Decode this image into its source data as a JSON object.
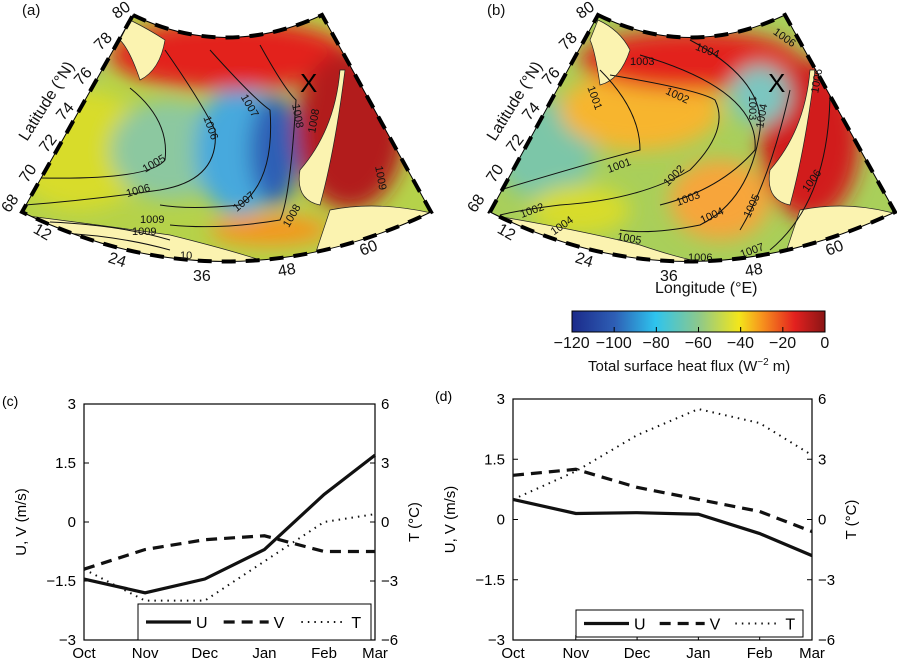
{
  "maps": [
    {
      "panel": "(a)",
      "lat_label": "Latitude (°N)",
      "lat_ticks": [
        "80",
        "78",
        "76",
        "74",
        "72",
        "70",
        "68"
      ],
      "lon_ticks": [
        "12",
        "24",
        "36",
        "48",
        "60"
      ],
      "contours": [
        "1005",
        "1006",
        "1007",
        "1008",
        "1006",
        "1007",
        "1008",
        "1009",
        "1009",
        "1008",
        "1009",
        "10"
      ],
      "marker": "X"
    },
    {
      "panel": "(b)",
      "lat_label": "Latitude (°N)",
      "lat_ticks": [
        "80",
        "78",
        "76",
        "74",
        "72",
        "70",
        "68"
      ],
      "lon_ticks": [
        "12",
        "24",
        "36",
        "48",
        "60"
      ],
      "lon_label": "Longitude (°E)",
      "contours": [
        "1006",
        "1004",
        "1003",
        "1002",
        "1001",
        "1001",
        "1002",
        "1003",
        "1004",
        "1005",
        "1006",
        "1002",
        "1004",
        "1005",
        "1006",
        "1004",
        "1003",
        "1006",
        "1007"
      ],
      "marker": "X"
    }
  ],
  "colorbar": {
    "ticks": [
      "−120",
      "−100",
      "−80",
      "−60",
      "−40",
      "−20",
      "0"
    ],
    "label": "Total surface heat flux (W",
    "label_sup": "−2",
    "label_end": " m)",
    "range": [
      -120,
      0
    ],
    "colors": [
      "#1b2a8a",
      "#2e5fb5",
      "#2ec4ee",
      "#8cc88c",
      "#f3e61b",
      "#f7941d",
      "#e3211f",
      "#8a1515"
    ]
  },
  "chart_data": [
    {
      "type": "line",
      "panel": "(c)",
      "categories": [
        "Oct",
        "Nov",
        "Dec",
        "Jan",
        "Feb",
        "Mar"
      ],
      "ylabel": "U, V (m/s)",
      "y2label": "T (°C)",
      "ylim": [
        -3,
        3
      ],
      "y2lim": [
        -6,
        6
      ],
      "yticks": [
        "3",
        "1.5",
        "0",
        "−1.5",
        "−3"
      ],
      "y2ticks": [
        "6",
        "3",
        "0",
        "−3",
        "−6"
      ],
      "series": [
        {
          "name": "U",
          "axis": "left",
          "style": "solid",
          "values": [
            -1.45,
            -1.8,
            -1.45,
            -0.7,
            0.7,
            1.7
          ]
        },
        {
          "name": "V",
          "axis": "left",
          "style": "dashed",
          "values": [
            -1.2,
            -0.7,
            -0.45,
            -0.35,
            -0.75,
            -0.75
          ]
        },
        {
          "name": "T",
          "axis": "right",
          "style": "dotted",
          "values": [
            -2.4,
            -4,
            -4,
            -2,
            0,
            0.4
          ]
        }
      ],
      "legend": [
        "U",
        "V",
        "T"
      ],
      "legend_position": "bottom-right"
    },
    {
      "type": "line",
      "panel": "(d)",
      "categories": [
        "Oct",
        "Nov",
        "Dec",
        "Jan",
        "Feb",
        "Mar"
      ],
      "ylabel": "U, V (m/s)",
      "y2label": "T (°C)",
      "ylim": [
        -3,
        3
      ],
      "y2lim": [
        -6,
        6
      ],
      "yticks": [
        "3",
        "1.5",
        "0",
        "−1.5",
        "−3"
      ],
      "y2ticks": [
        "6",
        "3",
        "0",
        "−3",
        "−6"
      ],
      "series": [
        {
          "name": "U",
          "axis": "left",
          "style": "solid",
          "values": [
            0.5,
            0.15,
            0.17,
            0.13,
            -0.35,
            -0.9
          ]
        },
        {
          "name": "V",
          "axis": "left",
          "style": "dashed",
          "values": [
            1.1,
            1.25,
            0.8,
            0.5,
            0.2,
            -0.3
          ]
        },
        {
          "name": "T",
          "axis": "right",
          "style": "dotted",
          "values": [
            1,
            2.4,
            4.2,
            5.5,
            4.8,
            3.2
          ]
        }
      ],
      "legend": [
        "U",
        "V",
        "T"
      ],
      "legend_position": "bottom-right"
    }
  ]
}
